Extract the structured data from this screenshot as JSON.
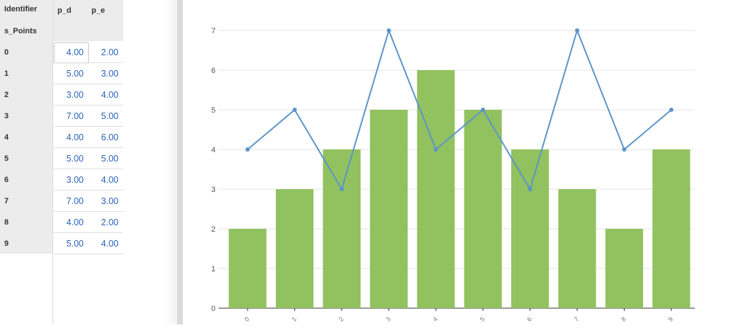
{
  "table": {
    "header": {
      "identifier": "Identifier",
      "sub": "s_Points",
      "col_d": "p_d",
      "col_e": "p_e"
    },
    "rows": [
      {
        "id": "0",
        "p_d": "4.00",
        "p_e": "2.00"
      },
      {
        "id": "1",
        "p_d": "5.00",
        "p_e": "3.00"
      },
      {
        "id": "2",
        "p_d": "3.00",
        "p_e": "4.00"
      },
      {
        "id": "3",
        "p_d": "7.00",
        "p_e": "5.00"
      },
      {
        "id": "4",
        "p_d": "4.00",
        "p_e": "6.00"
      },
      {
        "id": "5",
        "p_d": "5.00",
        "p_e": "5.00"
      },
      {
        "id": "6",
        "p_d": "3.00",
        "p_e": "4.00"
      },
      {
        "id": "7",
        "p_d": "7.00",
        "p_e": "3.00"
      },
      {
        "id": "8",
        "p_d": "4.00",
        "p_e": "2.00"
      },
      {
        "id": "9",
        "p_d": "5.00",
        "p_e": "4.00"
      }
    ]
  },
  "chart_data": {
    "type": "bar",
    "categories": [
      "0",
      "1",
      "2",
      "3",
      "4",
      "5",
      "6",
      "7",
      "8",
      "9"
    ],
    "series": [
      {
        "type": "bar",
        "values": [
          2,
          3,
          4,
          5,
          6,
          5,
          4,
          3,
          2,
          4
        ],
        "color": "#92c15f"
      },
      {
        "type": "line",
        "values": [
          4,
          5,
          3,
          7,
          4,
          5,
          3,
          7,
          4,
          5
        ],
        "color": "#5b95c7"
      }
    ],
    "yticks": [
      "0",
      "1",
      "2",
      "3",
      "4",
      "5",
      "6",
      "7"
    ],
    "ylim": [
      0,
      7
    ],
    "grid": true,
    "legend": "none",
    "title": "",
    "xlabel": "",
    "ylabel": ""
  }
}
